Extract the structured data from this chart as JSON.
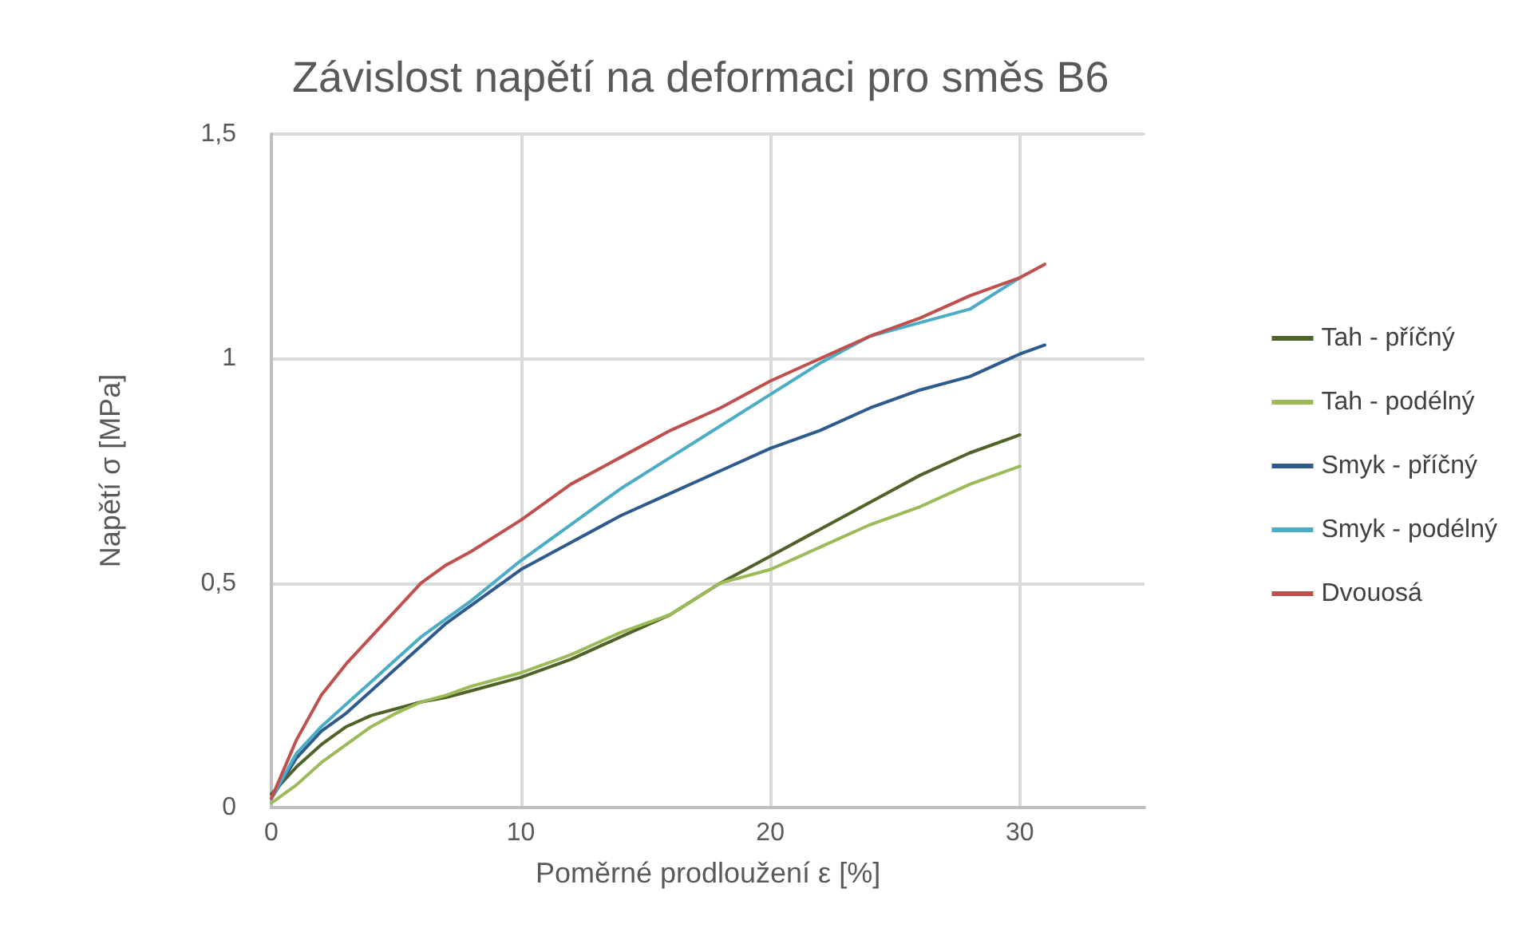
{
  "chart_data": {
    "type": "line",
    "title": "Závislost napětí na deformaci pro směs B6",
    "xlabel": "Poměrné prodloužení ε [%]",
    "ylabel": "Napětí σ [MPa]",
    "xlim": [
      0,
      35
    ],
    "xticks": [
      0,
      10,
      20,
      30
    ],
    "ylim": [
      0,
      1.5
    ],
    "yticks": [
      0,
      {
        "value": 0.5,
        "label": "0,5"
      },
      1,
      {
        "value": 1.5,
        "label": "1,5"
      }
    ],
    "grid": true,
    "legend": "right",
    "marker": "none",
    "line_style": "solid",
    "series": [
      {
        "name": "Tah - příčný",
        "color": "#4f6228",
        "x": [
          0,
          1,
          2,
          3,
          4,
          5,
          6,
          7,
          8,
          10,
          12,
          14,
          16,
          18,
          20,
          22,
          24,
          26,
          28,
          30
        ],
        "values": [
          0.03,
          0.09,
          0.14,
          0.18,
          0.205,
          0.22,
          0.235,
          0.245,
          0.26,
          0.29,
          0.33,
          0.38,
          0.43,
          0.5,
          0.56,
          0.62,
          0.68,
          0.74,
          0.79,
          0.83
        ]
      },
      {
        "name": "Tah - podélný",
        "color": "#9bbb59",
        "x": [
          0,
          1,
          2,
          3,
          4,
          5,
          6,
          7,
          8,
          10,
          12,
          14,
          16,
          18,
          20,
          22,
          24,
          26,
          28,
          30
        ],
        "values": [
          0.01,
          0.05,
          0.1,
          0.14,
          0.18,
          0.21,
          0.235,
          0.25,
          0.27,
          0.3,
          0.34,
          0.39,
          0.43,
          0.5,
          0.53,
          0.58,
          0.63,
          0.67,
          0.72,
          0.76
        ]
      },
      {
        "name": "Smyk - příčný",
        "color": "#2e5a8c",
        "x": [
          0,
          1,
          2,
          3,
          4,
          5,
          6,
          7,
          8,
          10,
          12,
          14,
          16,
          18,
          20,
          22,
          24,
          26,
          28,
          30,
          31
        ],
        "values": [
          0.02,
          0.11,
          0.17,
          0.21,
          0.26,
          0.31,
          0.36,
          0.41,
          0.45,
          0.53,
          0.59,
          0.65,
          0.7,
          0.75,
          0.8,
          0.84,
          0.89,
          0.93,
          0.96,
          1.01,
          1.03
        ]
      },
      {
        "name": "Smyk - podélný",
        "color": "#4bacc6",
        "x": [
          0,
          1,
          2,
          3,
          4,
          5,
          6,
          7,
          8,
          10,
          12,
          14,
          16,
          18,
          20,
          22,
          24,
          26,
          28,
          30
        ],
        "values": [
          0.02,
          0.12,
          0.18,
          0.23,
          0.28,
          0.33,
          0.38,
          0.42,
          0.46,
          0.55,
          0.63,
          0.71,
          0.78,
          0.85,
          0.92,
          0.99,
          1.05,
          1.08,
          1.11,
          1.18
        ]
      },
      {
        "name": "Dvouosá",
        "color": "#c0504d",
        "x": [
          0,
          1,
          2,
          3,
          4,
          5,
          6,
          7,
          8,
          10,
          12,
          14,
          16,
          18,
          20,
          22,
          24,
          26,
          28,
          30,
          31
        ],
        "values": [
          0.02,
          0.15,
          0.25,
          0.32,
          0.38,
          0.44,
          0.5,
          0.54,
          0.57,
          0.64,
          0.72,
          0.78,
          0.84,
          0.89,
          0.95,
          1.0,
          1.05,
          1.09,
          1.14,
          1.18,
          1.21
        ]
      }
    ]
  }
}
